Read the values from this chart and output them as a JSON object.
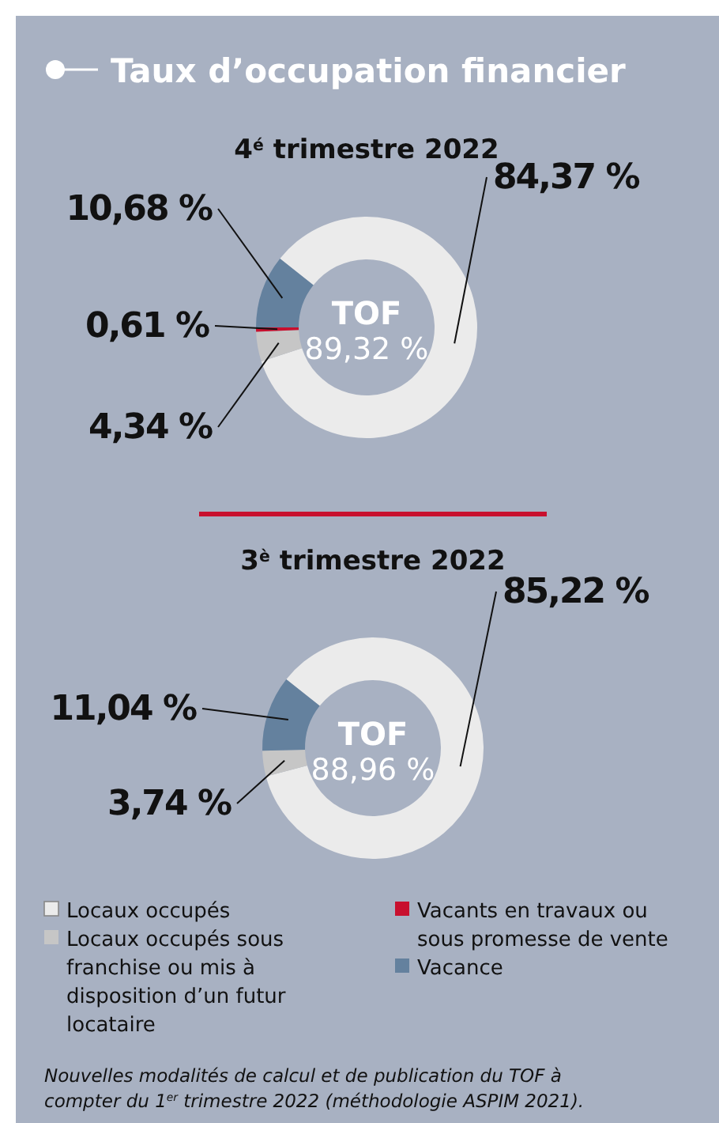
{
  "chart_data": [
    {
      "type": "donut",
      "title": "Taux d’occupation financier",
      "subtitle": "4$^{é}$ trimestre 2022",
      "categories": [
        null,
        null,
        null,
        null
      ],
      "values": [
        84.37,
        4.34,
        0.61,
        10.68
      ],
      "colors": [
        "#ebebeb",
        "#c6c6c6",
        "#c8102e",
        "#64819e"
      ],
      "value_labels": [
        "84,37 %",
        "4,34 %",
        "0,61 %",
        "10,68 %"
      ],
      "annotations": [
        "TOF",
        "89,32 %"
      ]
    },
    {
      "type": "donut",
      "title": "3$^{è}$ trimestre 2022",
      "categories": [
        "Locaux occupés",
        "Locaux occupés sous franchise ou mis à disposition d’un futur locataire",
        "Vacants en travaux ou sous promesse de vente",
        "Vacance"
      ],
      "values": [
        85.22,
        3.74,
        null,
        11.04
      ],
      "colors": [
        "#ebebeb",
        "#c6c6c6",
        "#c8102e",
        "#64819e"
      ],
      "value_labels": [
        "85,22 %",
        "3,74 %",
        null,
        "11,04 %"
      ],
      "legend": "bottom",
      "annotations": [
        "TOF",
        "88,96 %",
        "Nouvelles modalités de calcul et de publication du TOF à compter du 1$^{er}$ trimestre 2022 (méthodologie ASPIM 2021)."
      ]
    }
  ]
}
